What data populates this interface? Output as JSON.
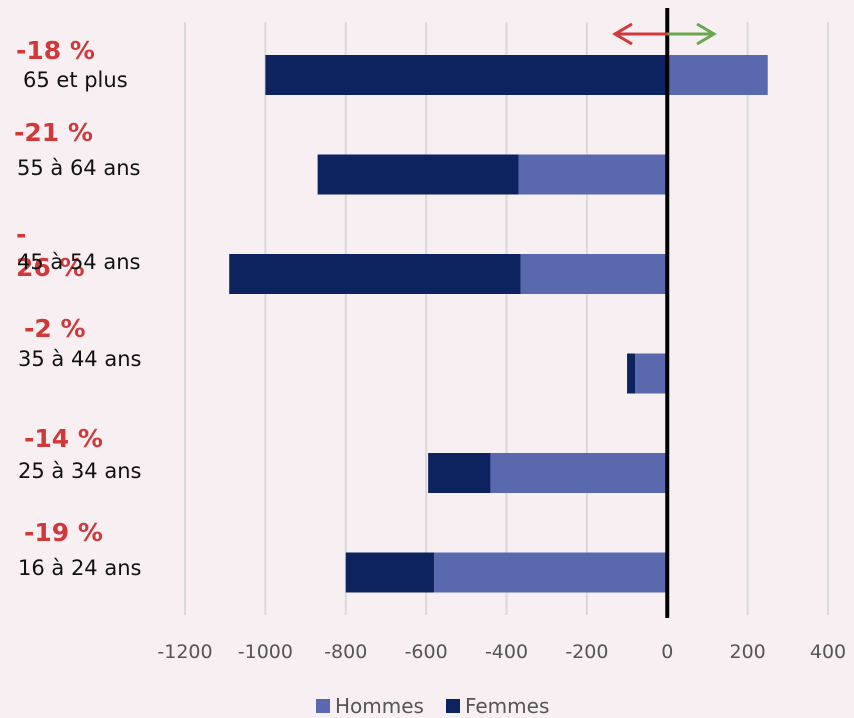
{
  "chart_data": {
    "type": "bar",
    "orientation": "horizontal",
    "stacked": true,
    "categories": [
      "65 et plus",
      "55 à 64 ans",
      "45 à 54 ans",
      "35 à 44 ans",
      "25 à 34 ans",
      "16 à 24 ans"
    ],
    "percent_labels": [
      "-18 %",
      "-21 %",
      "-\n26 %",
      "-2 %",
      "-14 %",
      "-19 %"
    ],
    "series": [
      {
        "name": "Hommes",
        "values": [
          250,
          -370,
          -365,
          -80,
          -440,
          -580
        ],
        "color": "#5a69ae"
      },
      {
        "name": "Femmes",
        "values": [
          -1000,
          -500,
          -725,
          -20,
          -155,
          -220
        ],
        "color": "#0d2360"
      }
    ],
    "xlim": [
      -1200,
      400
    ],
    "x_ticks": [
      -1200,
      -1000,
      -800,
      -600,
      -400,
      -200,
      0,
      200,
      400
    ],
    "grid": true,
    "legend_position": "bottom",
    "arrow_colors": {
      "left": "#d0393a",
      "right": "#6aa84f"
    }
  }
}
